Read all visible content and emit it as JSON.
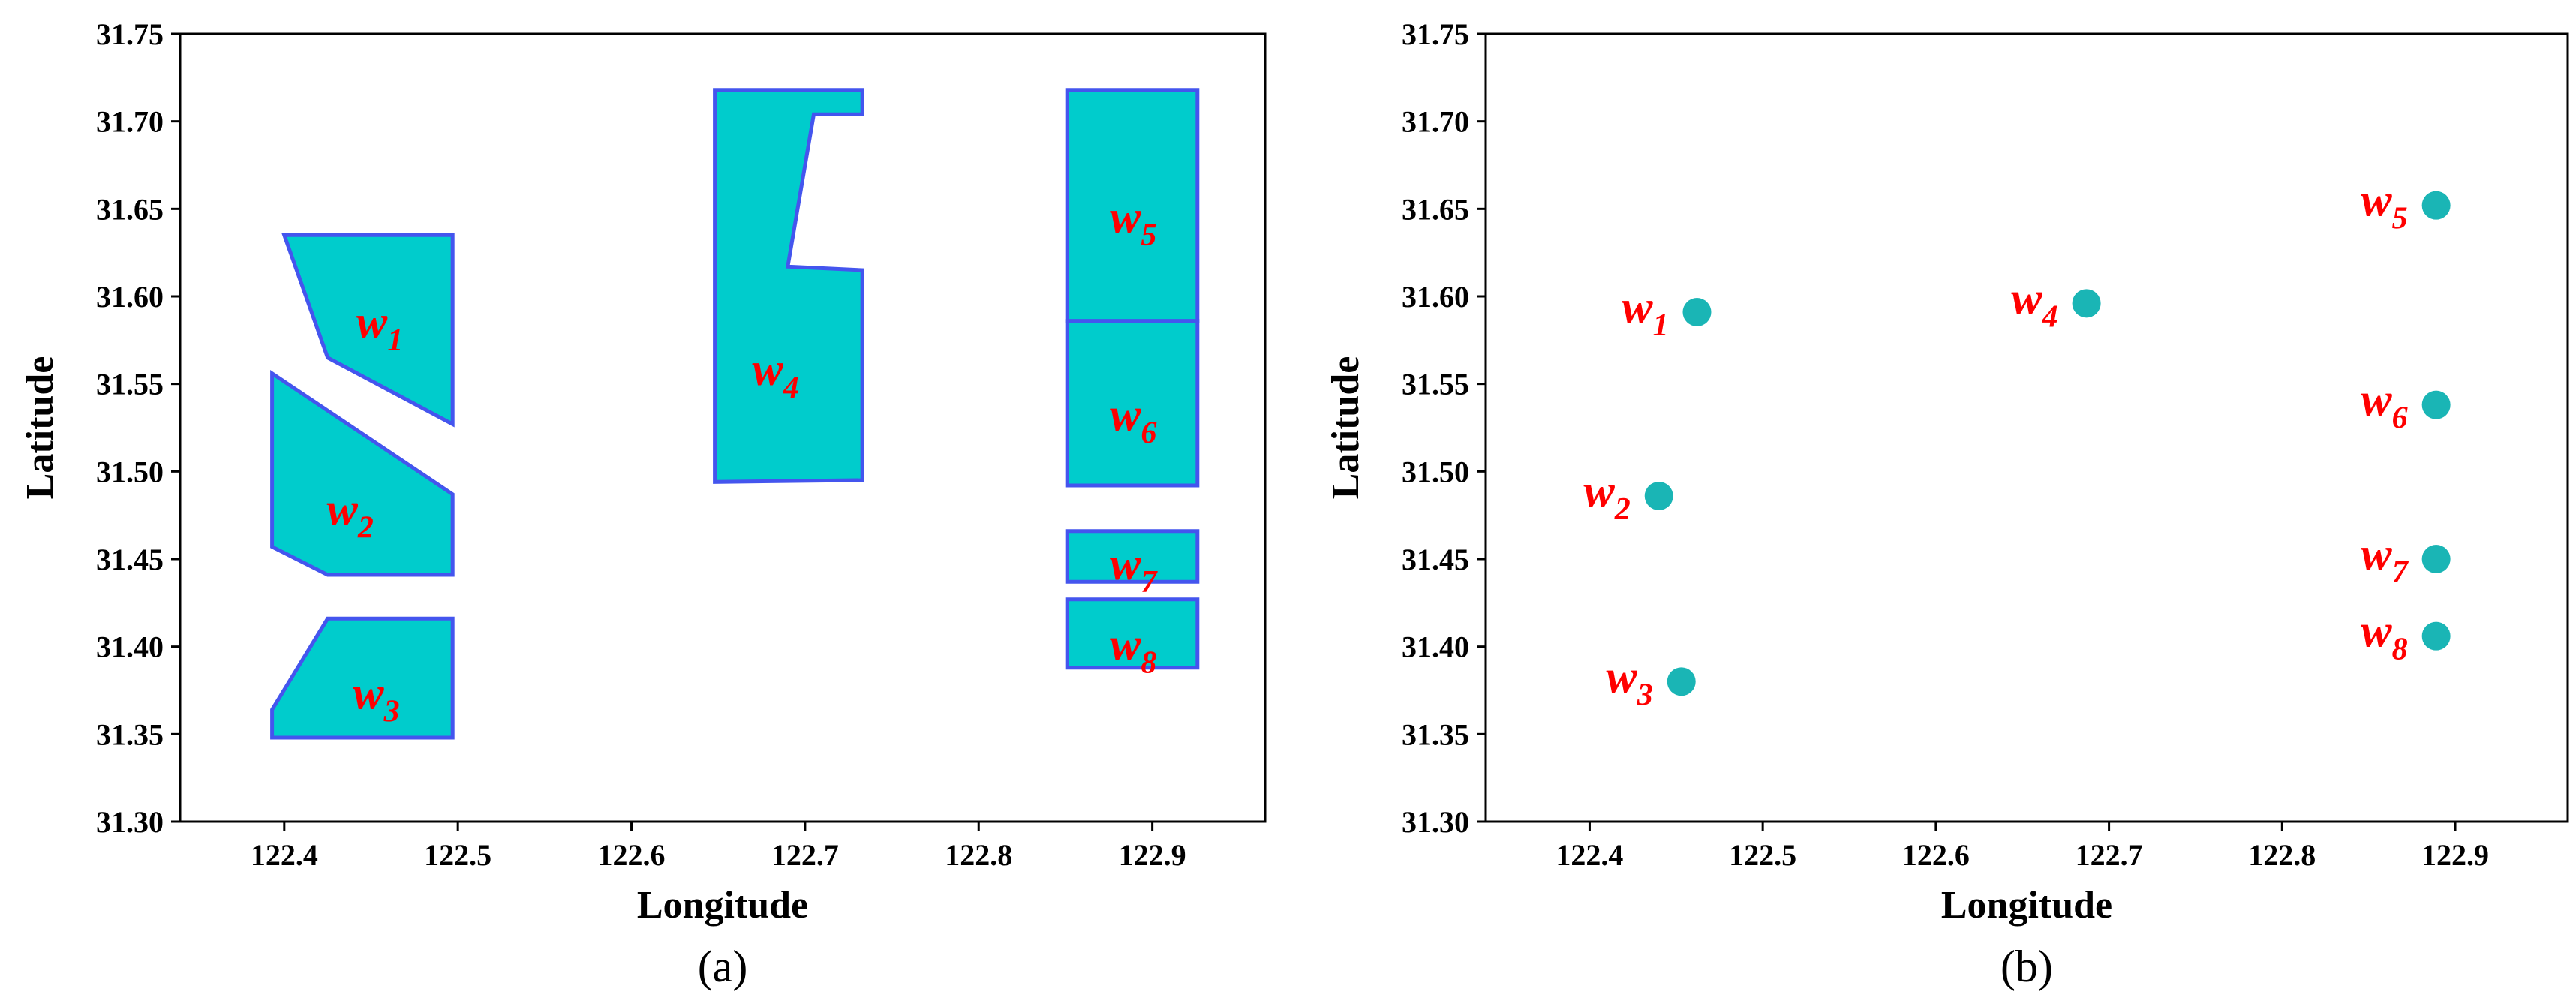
{
  "chart_data": [
    {
      "type": "area",
      "panel_label": "(a)",
      "xlabel": "Longitude",
      "ylabel": "Latitude",
      "xlim": [
        122.34,
        122.965
      ],
      "ylim": [
        31.3,
        31.75
      ],
      "xticks": [
        "122.4",
        "122.5",
        "122.6",
        "122.7",
        "122.8",
        "122.9"
      ],
      "xtick_values": [
        122.4,
        122.5,
        122.6,
        122.7,
        122.8,
        122.9
      ],
      "yticks": [
        "31.30",
        "31.35",
        "31.40",
        "31.45",
        "31.50",
        "31.55",
        "31.60",
        "31.65",
        "31.70",
        "31.75"
      ],
      "ytick_values": [
        31.3,
        31.35,
        31.4,
        31.45,
        31.5,
        31.55,
        31.6,
        31.65,
        31.7,
        31.75
      ],
      "grid": false,
      "fill_color": "#00cccc",
      "edge_color": "#4455ee",
      "label_color": "#ff0000",
      "series": [
        {
          "name": "w1",
          "label_base": "w",
          "label_sub": "1",
          "label_at": [
            122.455,
            31.585
          ],
          "polygon": [
            [
              122.4,
              31.635
            ],
            [
              122.497,
              31.635
            ],
            [
              122.497,
              31.527
            ],
            [
              122.425,
              31.565
            ]
          ]
        },
        {
          "name": "w2",
          "label_base": "w",
          "label_sub": "2",
          "label_at": [
            122.438,
            31.478
          ],
          "polygon": [
            [
              122.393,
              31.556
            ],
            [
              122.497,
              31.487
            ],
            [
              122.497,
              31.441
            ],
            [
              122.425,
              31.441
            ],
            [
              122.393,
              31.457
            ]
          ]
        },
        {
          "name": "w3",
          "label_base": "w",
          "label_sub": "3",
          "label_at": [
            122.453,
            31.373
          ],
          "polygon": [
            [
              122.425,
              31.416
            ],
            [
              122.497,
              31.416
            ],
            [
              122.497,
              31.348
            ],
            [
              122.393,
              31.348
            ],
            [
              122.393,
              31.364
            ]
          ]
        },
        {
          "name": "w4",
          "label_base": "w",
          "label_sub": "4",
          "label_at": [
            122.683,
            31.558
          ],
          "polygon": [
            [
              122.648,
              31.718
            ],
            [
              122.733,
              31.718
            ],
            [
              122.733,
              31.704
            ],
            [
              122.705,
              31.704
            ],
            [
              122.69,
              31.617
            ],
            [
              122.733,
              31.615
            ],
            [
              122.733,
              31.495
            ],
            [
              122.648,
              31.494
            ]
          ]
        },
        {
          "name": "w5",
          "label_base": "w",
          "label_sub": "5",
          "label_at": [
            122.889,
            31.645
          ],
          "polygon": [
            [
              122.851,
              31.718
            ],
            [
              122.926,
              31.718
            ],
            [
              122.926,
              31.586
            ],
            [
              122.851,
              31.586
            ]
          ]
        },
        {
          "name": "w6",
          "label_base": "w",
          "label_sub": "6",
          "label_at": [
            122.889,
            31.532
          ],
          "polygon": [
            [
              122.851,
              31.586
            ],
            [
              122.926,
              31.586
            ],
            [
              122.926,
              31.492
            ],
            [
              122.851,
              31.492
            ]
          ]
        },
        {
          "name": "w7",
          "label_base": "w",
          "label_sub": "7",
          "label_at": [
            122.889,
            31.447
          ],
          "polygon": [
            [
              122.851,
              31.466
            ],
            [
              122.926,
              31.466
            ],
            [
              122.926,
              31.437
            ],
            [
              122.851,
              31.437
            ]
          ]
        },
        {
          "name": "w8",
          "label_base": "w",
          "label_sub": "8",
          "label_at": [
            122.889,
            31.401
          ],
          "polygon": [
            [
              122.851,
              31.427
            ],
            [
              122.926,
              31.427
            ],
            [
              122.926,
              31.388
            ],
            [
              122.851,
              31.388
            ]
          ]
        }
      ]
    },
    {
      "type": "scatter",
      "panel_label": "(b)",
      "xlabel": "Longitude",
      "ylabel": "Latitude",
      "xlim": [
        122.34,
        122.965
      ],
      "ylim": [
        31.3,
        31.75
      ],
      "xticks": [
        "122.4",
        "122.5",
        "122.6",
        "122.7",
        "122.8",
        "122.9"
      ],
      "xtick_values": [
        122.4,
        122.5,
        122.6,
        122.7,
        122.8,
        122.9
      ],
      "yticks": [
        "31.30",
        "31.35",
        "31.40",
        "31.45",
        "31.50",
        "31.55",
        "31.60",
        "31.65",
        "31.70",
        "31.75"
      ],
      "ytick_values": [
        31.3,
        31.35,
        31.4,
        31.45,
        31.5,
        31.55,
        31.6,
        31.65,
        31.7,
        31.75
      ],
      "grid": false,
      "marker_color": "#1ab5b5",
      "label_color": "#ff0000",
      "series": [
        {
          "name": "w1",
          "label_base": "w",
          "label_sub": "1",
          "x": 122.462,
          "y": 31.591
        },
        {
          "name": "w2",
          "label_base": "w",
          "label_sub": "2",
          "x": 122.44,
          "y": 31.486
        },
        {
          "name": "w3",
          "label_base": "w",
          "label_sub": "3",
          "x": 122.453,
          "y": 31.38
        },
        {
          "name": "w4",
          "label_base": "w",
          "label_sub": "4",
          "x": 122.687,
          "y": 31.596
        },
        {
          "name": "w5",
          "label_base": "w",
          "label_sub": "5",
          "x": 122.889,
          "y": 31.652
        },
        {
          "name": "w6",
          "label_base": "w",
          "label_sub": "6",
          "x": 122.889,
          "y": 31.538
        },
        {
          "name": "w7",
          "label_base": "w",
          "label_sub": "7",
          "x": 122.889,
          "y": 31.45
        },
        {
          "name": "w8",
          "label_base": "w",
          "label_sub": "8",
          "x": 122.889,
          "y": 31.406
        }
      ]
    }
  ]
}
